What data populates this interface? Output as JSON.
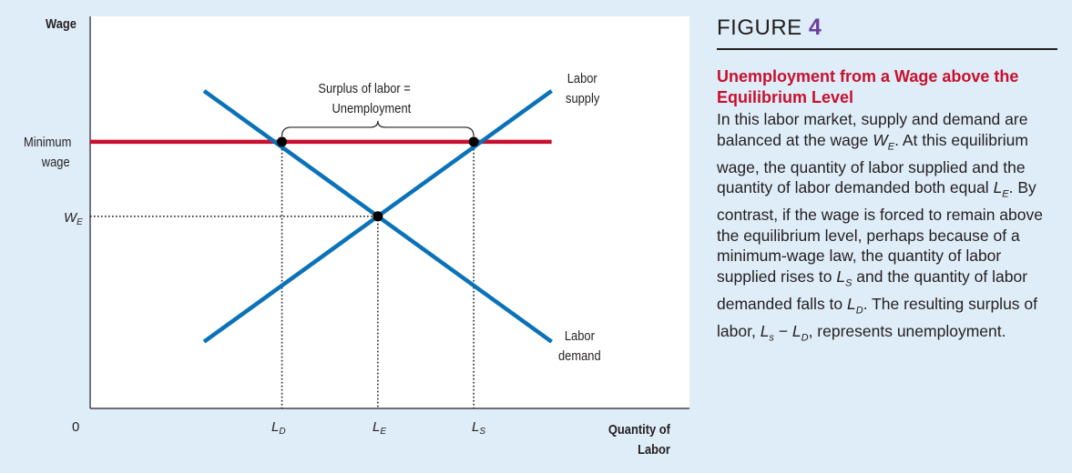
{
  "figure": {
    "label": "FIGURE",
    "number": "4",
    "caption_title": "Unemployment from a Wage above the Equilibrium Level",
    "caption_segments": [
      {
        "t": "In this labor market, supply and demand are balanced at the wage "
      },
      {
        "v": "W",
        "s": "E"
      },
      {
        "t": ". At this equilibrium wage, the quantity of labor supplied and the quantity of labor demanded both equal "
      },
      {
        "v": "L",
        "s": "E"
      },
      {
        "t": ". By contrast, if the wage is forced to remain above the equilibrium level, perhaps because of a minimum-wage law, the quantity of labor supplied rises to "
      },
      {
        "v": "L",
        "s": "S"
      },
      {
        "t": " and the quantity of labor demanded falls to "
      },
      {
        "v": "L",
        "s": "D"
      },
      {
        "t": ". The resulting surplus of labor, "
      },
      {
        "v": "L",
        "s": "s"
      },
      {
        "t": " − "
      },
      {
        "v": "L",
        "s": "D"
      },
      {
        "t": ", represents unemployment."
      }
    ]
  },
  "chart_data": {
    "type": "line",
    "ylabel": "Wage",
    "xlabel_line1": "Quantity of",
    "xlabel_line2": "Labor",
    "origin_label": "0",
    "xlim": [
      0,
      100
    ],
    "ylim": [
      0,
      100
    ],
    "series": [
      {
        "name": "Labor supply",
        "label_line1": "Labor",
        "label_line2": "supply",
        "color": "#0a72b8",
        "x": [
          19,
          77
        ],
        "y": [
          17,
          81
        ]
      },
      {
        "name": "Labor demand",
        "label_line1": "Labor",
        "label_line2": "demand",
        "color": "#0a72b8",
        "x": [
          19,
          77
        ],
        "y": [
          81,
          17
        ]
      },
      {
        "name": "Minimum wage",
        "label_line1": "Minimum",
        "label_line2": "wage",
        "color": "#c8102e",
        "x": [
          0,
          77
        ],
        "y": [
          68,
          68
        ]
      }
    ],
    "points": [
      {
        "name": "L_D",
        "x": 32,
        "y": 68
      },
      {
        "name": "L_S",
        "x": 64,
        "y": 68
      },
      {
        "name": "Equilibrium",
        "x": 48,
        "y": 49
      }
    ],
    "y_ticks": [
      {
        "label_line1": "Minimum",
        "label_line2": "wage",
        "y": 68
      },
      {
        "label": "W",
        "sub": "E",
        "y": 49
      }
    ],
    "x_ticks": [
      {
        "label": "L",
        "sub": "D",
        "x": 32
      },
      {
        "label": "L",
        "sub": "E",
        "x": 48
      },
      {
        "label": "L",
        "sub": "S",
        "x": 64
      }
    ],
    "annotation_line1": "Surplus of labor =",
    "annotation_line2": "Unemployment"
  }
}
